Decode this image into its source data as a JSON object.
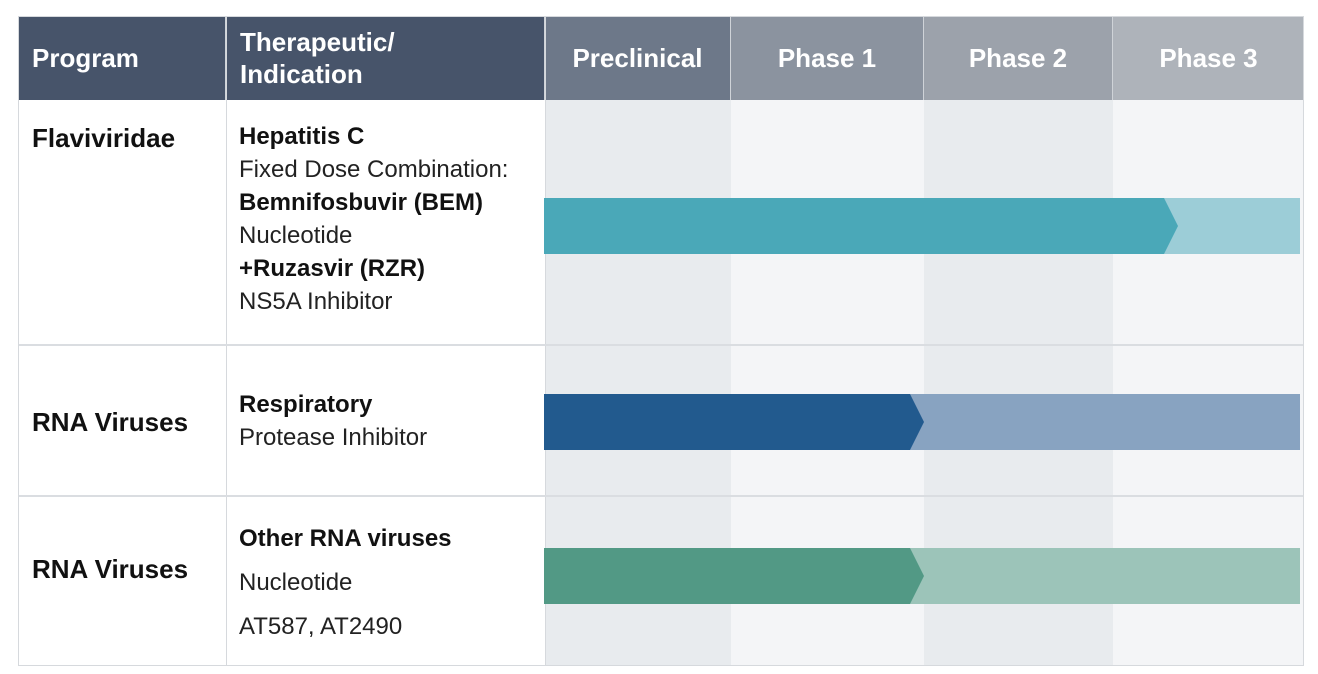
{
  "headers": {
    "program": "Program",
    "therapeutic": "Therapeutic/\nIndication",
    "phases": [
      "Preclinical",
      "Phase 1",
      "Phase 2",
      "Phase 3"
    ]
  },
  "rows": [
    {
      "program": "Flaviviridae",
      "lines": [
        "Hepatitis C",
        "Fixed Dose Combination:",
        "Bemnifosbuvir (BEM)",
        "Nucleotide",
        "+Ruzasvir (RZR)",
        "NS5A Inhibitor"
      ],
      "stage_reached": 3,
      "colors": {
        "solid": "#4aa8b8",
        "light": "#9ccdd7"
      }
    },
    {
      "program": "RNA Viruses",
      "lines": [
        "Respiratory",
        "Protease Inhibitor"
      ],
      "stage_reached": 1,
      "colors": {
        "solid": "#225a8e",
        "light": "#88a3c1"
      }
    },
    {
      "program": "RNA Viruses",
      "lines": [
        "Other RNA viruses",
        "Nucleotide",
        "AT587, AT2490"
      ],
      "stage_reached": 1,
      "colors": {
        "solid": "#529985",
        "light": "#9cc4b9"
      }
    }
  ]
}
